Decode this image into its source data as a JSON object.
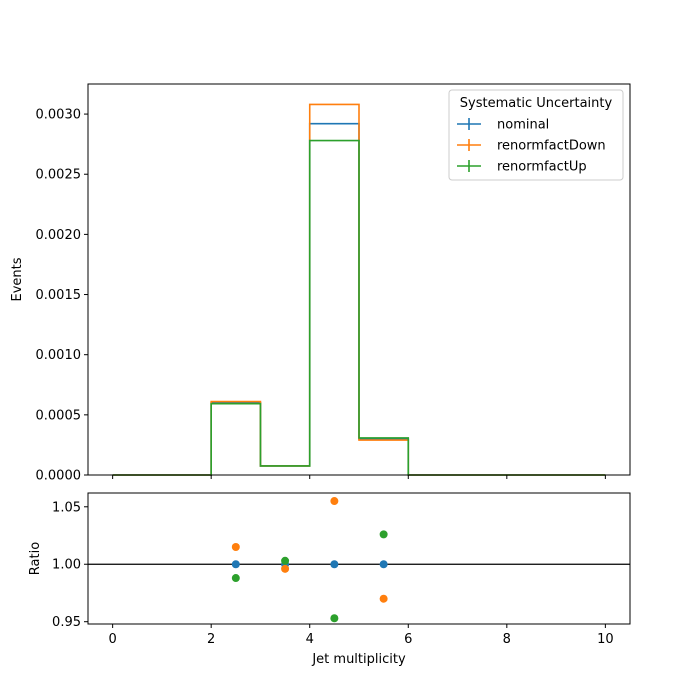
{
  "chart_data": [
    {
      "type": "line",
      "xlabel": "",
      "ylabel": "Events",
      "xlim": [
        -0.5,
        10.5
      ],
      "ylim": [
        0,
        0.00325
      ],
      "yticks": [
        "0.0000",
        "0.0005",
        "0.0010",
        "0.0015",
        "0.0020",
        "0.0025",
        "0.0030"
      ],
      "ytick_values": [
        0,
        0.0005,
        0.001,
        0.0015,
        0.002,
        0.0025,
        0.003
      ],
      "legend": {
        "title": "Systematic Uncertainty",
        "placement": "top-right"
      },
      "bin_edges": [
        0,
        1,
        2,
        3,
        4,
        5,
        6,
        7,
        8,
        9,
        10
      ],
      "series": [
        {
          "name": "nominal",
          "color": "#1f77b4",
          "values": [
            0,
            0,
            0.0006,
            7.5e-05,
            0.00292,
            0.0003,
            0,
            0,
            0,
            0
          ]
        },
        {
          "name": "renormfactDown",
          "color": "#ff7f0e",
          "values": [
            0,
            0,
            0.00061,
            7.5e-05,
            0.00308,
            0.00029,
            0,
            0,
            0,
            0
          ]
        },
        {
          "name": "renormfactUp",
          "color": "#2ca02c",
          "values": [
            0,
            0,
            0.000593,
            7.5e-05,
            0.00278,
            0.000308,
            0,
            0,
            0,
            0
          ]
        }
      ]
    },
    {
      "type": "scatter",
      "xlabel": "Jet multiplicity",
      "ylabel": "Ratio",
      "xlim": [
        -0.5,
        10.5
      ],
      "ylim": [
        0.948,
        1.062
      ],
      "xticks": [
        "0",
        "2",
        "4",
        "6",
        "8",
        "10"
      ],
      "xtick_values": [
        0,
        2,
        4,
        6,
        8,
        10
      ],
      "yticks": [
        "0.95",
        "1.00",
        "1.05"
      ],
      "ytick_values": [
        0.95,
        1.0,
        1.05
      ],
      "reference_line": 1.0,
      "series": [
        {
          "name": "nominal",
          "color": "#1f77b4",
          "x": [
            2.5,
            3.5,
            4.5,
            5.5
          ],
          "y": [
            1.0,
            1.0,
            1.0,
            1.0
          ]
        },
        {
          "name": "renormfactDown",
          "color": "#ff7f0e",
          "x": [
            2.5,
            3.5,
            4.5,
            5.5
          ],
          "y": [
            1.015,
            0.996,
            1.055,
            0.97
          ]
        },
        {
          "name": "renormfactUp",
          "color": "#2ca02c",
          "x": [
            2.5,
            3.5,
            4.5,
            5.5
          ],
          "y": [
            0.988,
            1.003,
            0.953,
            1.026
          ]
        }
      ]
    }
  ]
}
